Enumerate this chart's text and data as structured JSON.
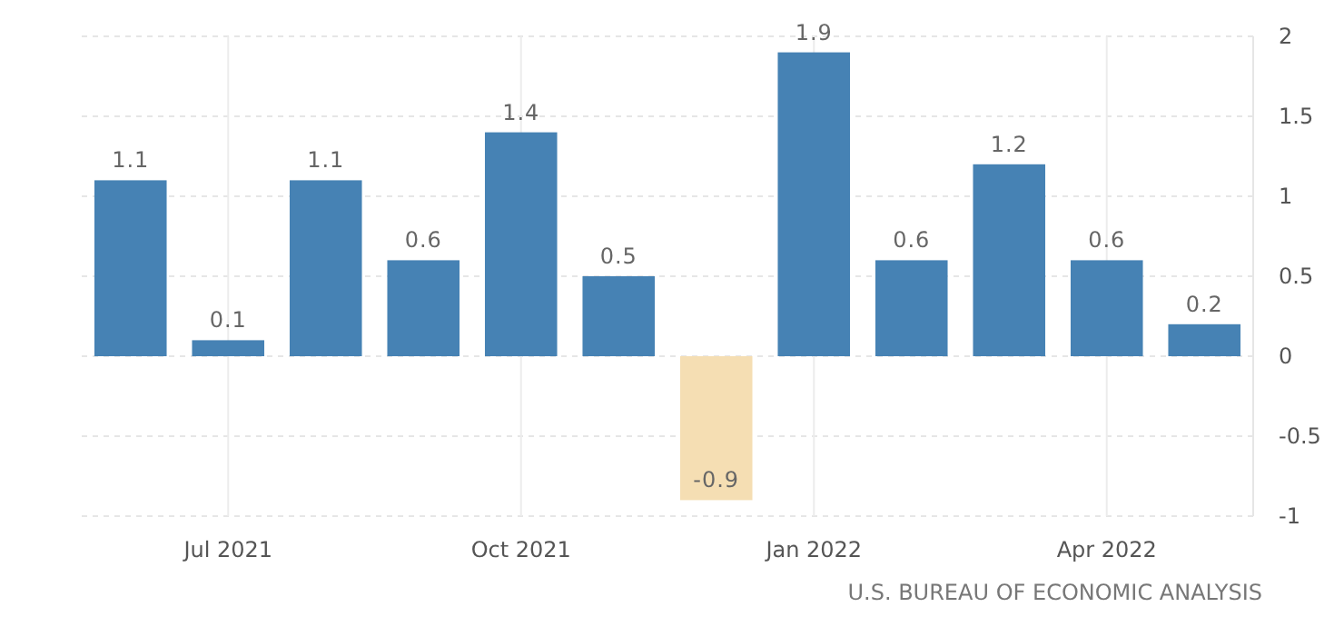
{
  "chart_data": {
    "type": "bar",
    "categories": [
      null,
      "Jul 2021",
      null,
      null,
      "Oct 2021",
      null,
      null,
      "Jan 2022",
      null,
      null,
      "Apr 2022",
      null
    ],
    "values": [
      1.1,
      0.1,
      1.1,
      0.6,
      1.4,
      0.5,
      -0.9,
      1.9,
      0.6,
      1.2,
      0.6,
      0.2
    ],
    "colors": [
      "#4682b4",
      "#4682b4",
      "#4682b4",
      "#4682b4",
      "#4682b4",
      "#4682b4",
      "#f5deb3",
      "#4682b4",
      "#4682b4",
      "#4682b4",
      "#4682b4",
      "#4682b4"
    ],
    "ylim": [
      -1,
      2
    ],
    "yticks": [
      -1,
      -0.5,
      0,
      0.5,
      1,
      1.5,
      2
    ],
    "grid": true,
    "data_labels": true,
    "annotations": [
      "U.S. BUREAU OF ECONOMIC ANALYSIS"
    ]
  }
}
